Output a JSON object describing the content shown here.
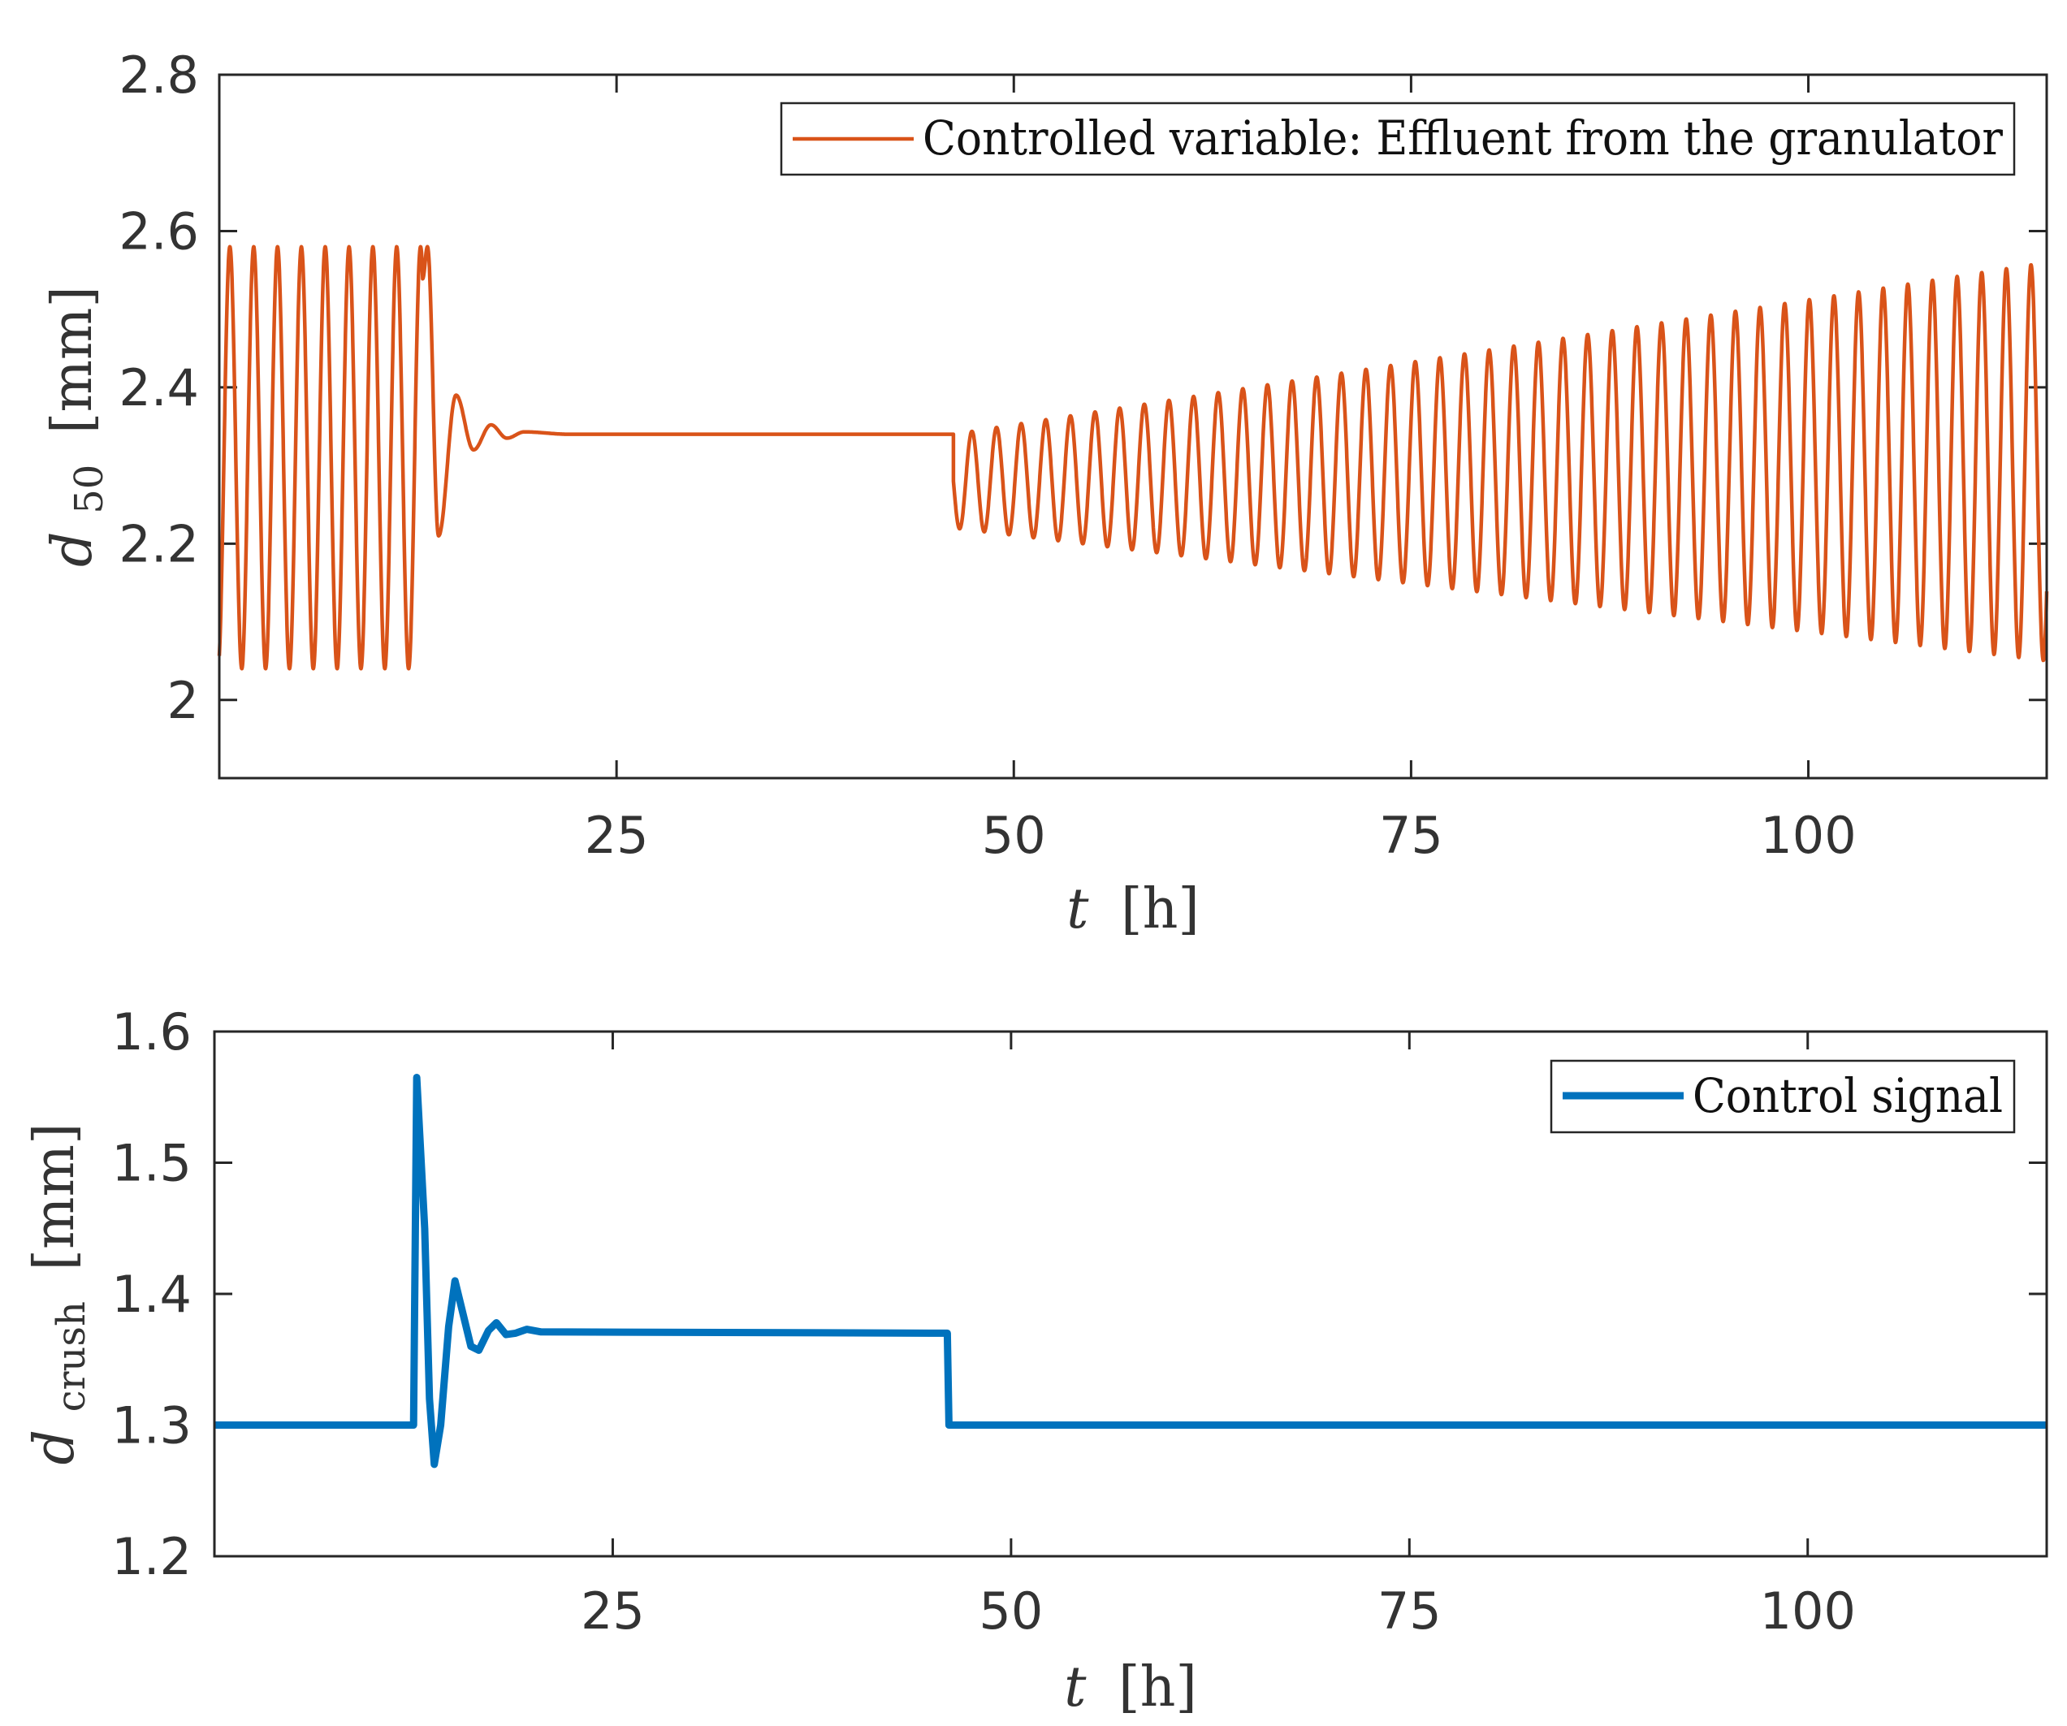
{
  "colors": {
    "series1": "#D95319",
    "series2": "#0072BD",
    "axis": "#262626",
    "text": "#333333"
  },
  "chart_data": [
    {
      "type": "line",
      "panel": "top",
      "xlabel_var": "t",
      "xlabel_unit": "[h]",
      "ylabel_var": "d",
      "ylabel_sub": "50",
      "ylabel_unit": "[mm]",
      "xlim": [
        0,
        115
      ],
      "ylim": [
        1.9,
        2.8
      ],
      "xticks": [
        25,
        50,
        75,
        100
      ],
      "yticks": [
        2,
        2.2,
        2.4,
        2.6,
        2.8
      ],
      "xtick_labels": [
        "25",
        "50",
        "75",
        "100"
      ],
      "ytick_labels": [
        "2",
        "2.2",
        "2.4",
        "2.6",
        "2.8"
      ],
      "legend": "top-right",
      "series": [
        {
          "name": "Controlled variable: Effluent from the granulator",
          "description_of_shape": "Oscillation 2.04–2.58 (period ~1.5 h) until t≈12.8 h; damped transient settling to 2.34 by t≈20 h; flat 2.34 until t≈46 h; then growing oscillation centred near 2.3 with amplitude rising from ~0.06 to ~0.26 at t=115 h (period ~1.55 h).",
          "segments": [
            {
              "kind": "oscillation",
              "t_start": 0,
              "t_end": 12.8,
              "center": 2.31,
              "amplitude": 0.27,
              "period": 1.5
            },
            {
              "kind": "damped",
              "t_start": 12.8,
              "t_end": 22,
              "final": 2.34,
              "peaks": [
                [
                  13.1,
                  2.58
                ],
                [
                  13.8,
                  2.21
                ],
                [
                  14.9,
                  2.39
                ],
                [
                  16.0,
                  2.32
                ],
                [
                  17.1,
                  2.352
                ],
                [
                  18.1,
                  2.335
                ],
                [
                  19.2,
                  2.343
                ]
              ]
            },
            {
              "kind": "flat",
              "t_start": 22,
              "t_end": 46.2,
              "value": 2.34
            },
            {
              "kind": "growing",
              "t_start": 46.2,
              "t_end": 115,
              "center_start": 2.28,
              "center_end": 2.305,
              "amplitude_start": 0.06,
              "amplitude_end": 0.255,
              "period": 1.55
            }
          ]
        }
      ]
    },
    {
      "type": "line",
      "panel": "bottom",
      "xlabel_var": "t",
      "xlabel_unit": "[h]",
      "ylabel_var": "d",
      "ylabel_sub": "crush",
      "ylabel_unit": "[mm]",
      "xlim": [
        0,
        115
      ],
      "ylim": [
        1.2,
        1.6
      ],
      "xticks": [
        25,
        50,
        75,
        100
      ],
      "yticks": [
        1.2,
        1.3,
        1.4,
        1.5,
        1.6
      ],
      "xtick_labels": [
        "25",
        "50",
        "75",
        "100"
      ],
      "ytick_labels": [
        "1.2",
        "1.3",
        "1.4",
        "1.5",
        "1.6"
      ],
      "legend": "top-right",
      "series": [
        {
          "name": "Control signal",
          "points": [
            [
              0,
              1.3
            ],
            [
              12.5,
              1.3
            ],
            [
              12.7,
              1.565
            ],
            [
              13.2,
              1.45
            ],
            [
              13.5,
              1.32
            ],
            [
              13.8,
              1.27
            ],
            [
              14.2,
              1.3
            ],
            [
              14.7,
              1.375
            ],
            [
              15.1,
              1.41
            ],
            [
              15.6,
              1.385
            ],
            [
              16.1,
              1.36
            ],
            [
              16.6,
              1.357
            ],
            [
              17.2,
              1.372
            ],
            [
              17.7,
              1.378
            ],
            [
              18.3,
              1.369
            ],
            [
              18.9,
              1.37
            ],
            [
              19.6,
              1.373
            ],
            [
              20.5,
              1.371
            ],
            [
              46.0,
              1.37
            ],
            [
              46.1,
              1.3
            ],
            [
              115,
              1.3
            ]
          ]
        }
      ]
    }
  ]
}
